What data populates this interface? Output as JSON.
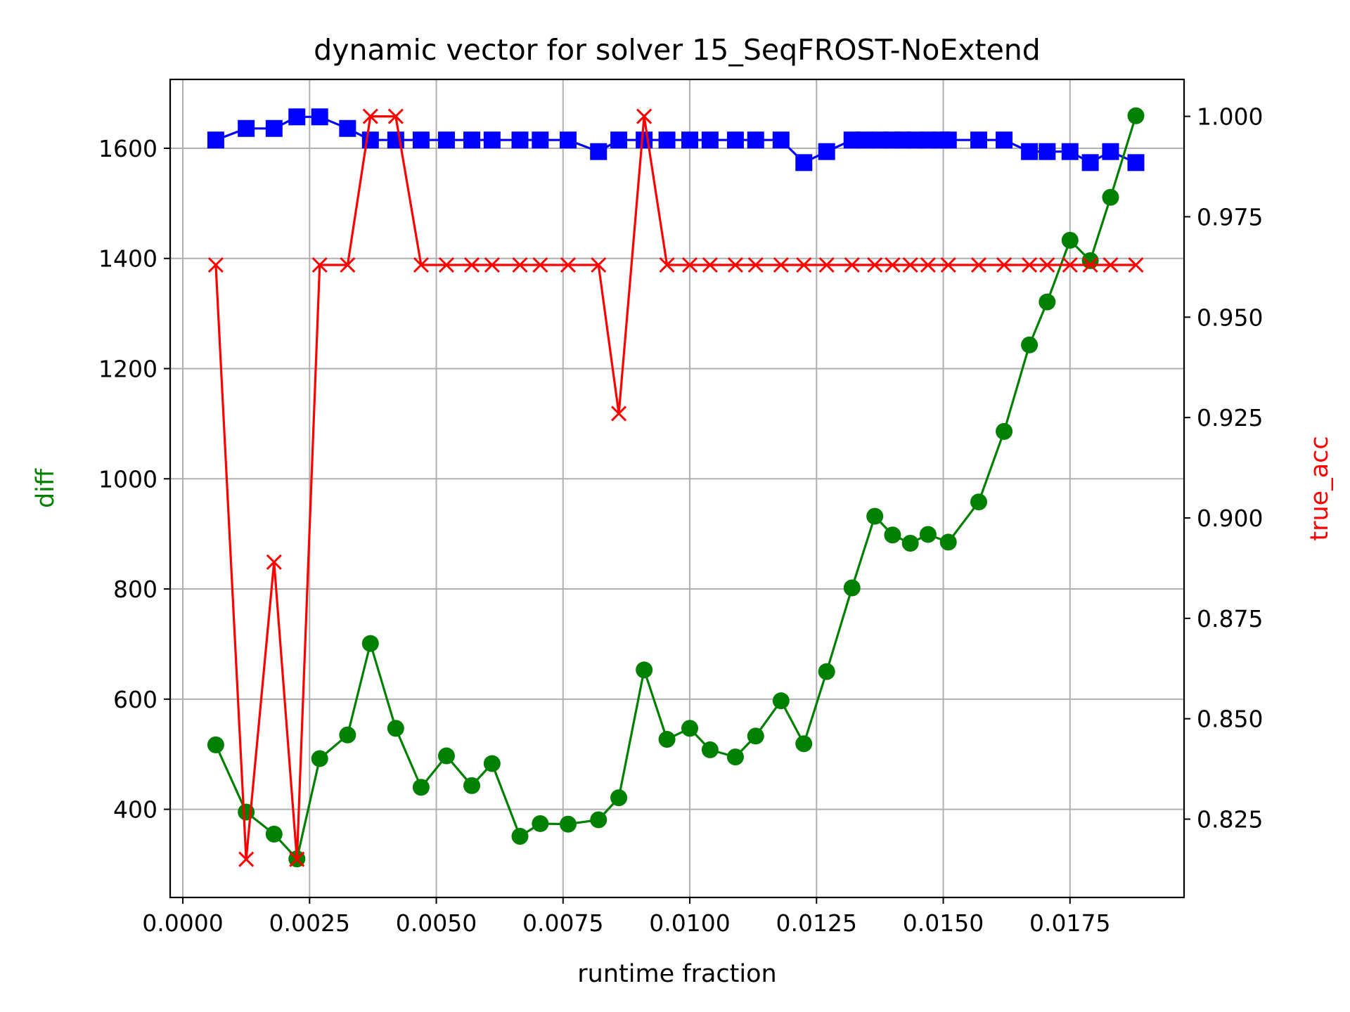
{
  "chart_data": {
    "type": "line",
    "title": "dynamic vector for solver 15_SeqFROST-NoExtend",
    "xlabel": "runtime fraction",
    "ylabel_left": "diff",
    "ylabel_right": "true_acc",
    "xlim": [
      -0.00025,
      0.01975
    ],
    "ylim_left": [
      240,
      1725
    ],
    "ylim_right": [
      0.8055,
      1.0092
    ],
    "x_ticks": [
      0.0,
      0.0025,
      0.005,
      0.0075,
      0.01,
      0.0125,
      0.015,
      0.0175
    ],
    "x_tick_labels": [
      "0.0000",
      "0.0025",
      "0.0050",
      "0.0075",
      "0.0100",
      "0.0125",
      "0.0150",
      "0.0175"
    ],
    "y_left_ticks": [
      400,
      600,
      800,
      1000,
      1200,
      1400,
      1600
    ],
    "y_left_tick_labels": [
      "400",
      "600",
      "800",
      "1000",
      "1200",
      "1400",
      "1600"
    ],
    "y_right_ticks": [
      0.825,
      0.85,
      0.875,
      0.9,
      0.925,
      0.95,
      0.975,
      1.0
    ],
    "y_right_tick_labels": [
      "0.825",
      "0.850",
      "0.875",
      "0.900",
      "0.925",
      "0.950",
      "0.975",
      "1.000"
    ],
    "grid": true,
    "colors": {
      "blue": "#0000ff",
      "green": "#008000",
      "red": "#ff0000",
      "grid": "#b0b0b0"
    },
    "series": [
      {
        "axis": "left",
        "marker": "square",
        "color": "#0000ff",
        "x": [
          0.00065,
          0.00125,
          0.0018,
          0.00225,
          0.0027,
          0.00325,
          0.0037,
          0.0042,
          0.0047,
          0.0052,
          0.0057,
          0.0061,
          0.00665,
          0.00705,
          0.0076,
          0.0082,
          0.0086,
          0.0091,
          0.00955,
          0.01,
          0.0104,
          0.0109,
          0.0113,
          0.0118,
          0.01225,
          0.0127,
          0.0132,
          0.01345,
          0.01375,
          0.014,
          0.0142,
          0.01445,
          0.0147,
          0.01495,
          0.0151,
          0.0157,
          0.0162,
          0.0167,
          0.01705,
          0.0175,
          0.0179,
          0.0183,
          0.0188
        ],
        "values": [
          1615,
          1636,
          1636,
          1657,
          1657,
          1636,
          1615,
          1615,
          1615,
          1615,
          1615,
          1615,
          1615,
          1615,
          1615,
          1594,
          1615,
          1615,
          1615,
          1615,
          1615,
          1615,
          1615,
          1615,
          1574,
          1594,
          1615,
          1615,
          1615,
          1615,
          1615,
          1615,
          1615,
          1615,
          1615,
          1615,
          1615,
          1594,
          1594,
          1594,
          1574,
          1594,
          1574
        ]
      },
      {
        "axis": "left",
        "marker": "circle",
        "color": "#008000",
        "x": [
          0.00065,
          0.00125,
          0.0018,
          0.00225,
          0.0027,
          0.00325,
          0.0037,
          0.0042,
          0.0047,
          0.0052,
          0.0057,
          0.0061,
          0.00665,
          0.00705,
          0.0076,
          0.0082,
          0.0086,
          0.0091,
          0.00955,
          0.01,
          0.0104,
          0.0109,
          0.0113,
          0.0118,
          0.01225,
          0.0127,
          0.0132,
          0.01365,
          0.014,
          0.01435,
          0.0147,
          0.0151,
          0.0157,
          0.0162,
          0.0167,
          0.01705,
          0.0175,
          0.0179,
          0.0183,
          0.0188
        ],
        "values": [
          517,
          395,
          355,
          310,
          492,
          535,
          701,
          547,
          440,
          497,
          443,
          483,
          351,
          374,
          373,
          381,
          421,
          653,
          527,
          547,
          508,
          495,
          533,
          597,
          519,
          650,
          802,
          932,
          898,
          883,
          899,
          885,
          958,
          1086,
          1243,
          1321,
          1433,
          1396,
          1511,
          1659
        ]
      },
      {
        "axis": "right",
        "marker": "x",
        "color": "#ff0000",
        "x": [
          0.00065,
          0.00125,
          0.0018,
          0.00225,
          0.0027,
          0.00325,
          0.0037,
          0.0042,
          0.0047,
          0.0052,
          0.0057,
          0.0061,
          0.00665,
          0.00705,
          0.0076,
          0.0082,
          0.0086,
          0.0091,
          0.00955,
          0.01,
          0.0104,
          0.0109,
          0.0113,
          0.0118,
          0.01225,
          0.0127,
          0.0132,
          0.01365,
          0.014,
          0.01435,
          0.0147,
          0.0151,
          0.0157,
          0.0162,
          0.0167,
          0.01705,
          0.0175,
          0.0179,
          0.0183,
          0.0188
        ],
        "values": [
          0.963,
          0.815,
          0.889,
          0.815,
          0.963,
          0.963,
          1.0,
          1.0,
          0.963,
          0.963,
          0.963,
          0.963,
          0.963,
          0.963,
          0.963,
          0.963,
          0.926,
          1.0,
          0.963,
          0.963,
          0.963,
          0.963,
          0.963,
          0.963,
          0.963,
          0.963,
          0.963,
          0.963,
          0.963,
          0.963,
          0.963,
          0.963,
          0.963,
          0.963,
          0.963,
          0.963,
          0.963,
          0.963,
          0.963,
          0.963
        ]
      }
    ]
  }
}
